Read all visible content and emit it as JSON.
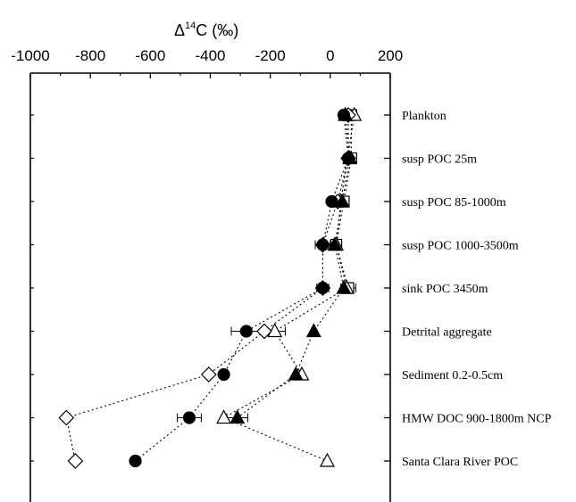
{
  "chart_data": {
    "type": "scatter",
    "title": "",
    "xlabel_parts": [
      "Δ",
      "14",
      "C (‰)"
    ],
    "xlabel": "Δ14C (‰)",
    "xlim": [
      -1000,
      200
    ],
    "x_ticks": [
      -1000,
      -800,
      -600,
      -400,
      -200,
      0,
      200
    ],
    "x_tick_labels": [
      "-1000",
      "-800",
      "-600",
      "-400",
      "-200",
      "0",
      "200"
    ],
    "categories": [
      "Plankton",
      "susp POC 25m",
      "susp POC 85-1000m",
      "susp POC 1000-3500m",
      "sink POC 3450m",
      "Detrital aggregate",
      "Sediment 0.2-0.5cm",
      "HMW DOC 900-1800m NCP",
      "Santa Clara River POC"
    ],
    "grid": false,
    "legend": "none",
    "series": [
      {
        "marker": "circle",
        "values": [
          45,
          60,
          5,
          -25,
          -25,
          -280,
          -355,
          -470,
          -650
        ],
        "err": [
          0,
          0,
          0,
          25,
          20,
          50,
          0,
          40,
          0
        ]
      },
      {
        "marker": "diamond",
        "values": [
          60,
          60,
          25,
          -25,
          -25,
          -220,
          -405,
          -880,
          -850
        ],
        "err": [
          0,
          0,
          0,
          0,
          0,
          0,
          0,
          12,
          0
        ]
      },
      {
        "marker": "triangle",
        "values": [
          50,
          65,
          40,
          15,
          45,
          -55,
          -115,
          -310,
          null
        ],
        "err": [
          0,
          0,
          0,
          0,
          0,
          0,
          0,
          35,
          0
        ]
      },
      {
        "marker": "triangle-open",
        "values": [
          80,
          null,
          35,
          20,
          55,
          -185,
          -95,
          -355,
          -10
        ],
        "err": [
          0,
          0,
          0,
          0,
          0,
          35,
          0,
          0,
          0
        ]
      },
      {
        "marker": "square-open",
        "values": [
          70,
          70,
          45,
          20,
          60,
          null,
          null,
          null,
          null
        ],
        "err": [
          0,
          0,
          0,
          0,
          25,
          0,
          0,
          0,
          0
        ]
      }
    ]
  }
}
